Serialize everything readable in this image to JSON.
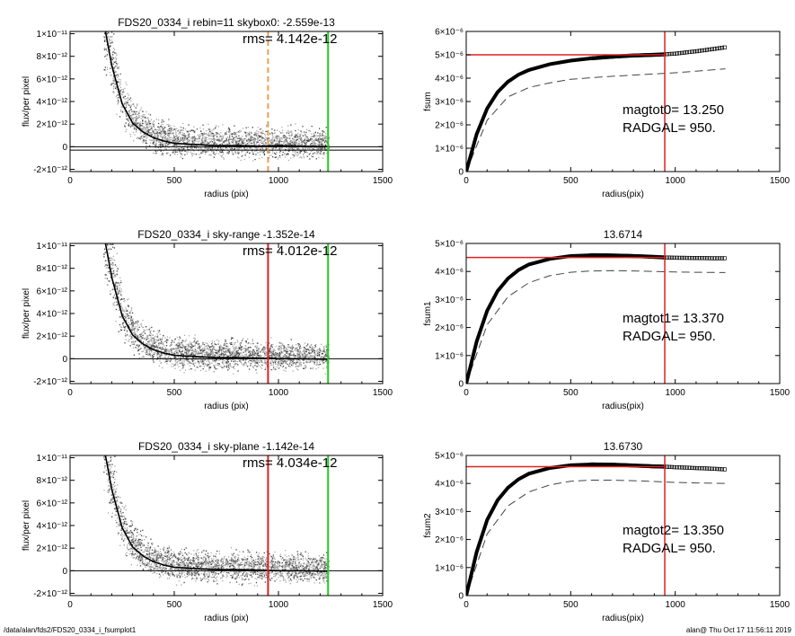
{
  "footer": {
    "path": "/data/alan/fds2/FDS20_0334_i_fsumplot1",
    "stamp": "alan@  Thu Oct 17 11:56:11 2019"
  },
  "chart_data": [
    {
      "type": "scatter",
      "title": "FDS20_0334_i rebin=11     skybox0: -2.559e-13",
      "annotation": "rms= 4.142e-12",
      "xlabel": "radius (pix)",
      "ylabel": "flux/per pixel",
      "xlim": [
        0,
        1500
      ],
      "ylim": [
        -2.2e-12,
        1.02e-11
      ],
      "xticks": [
        0,
        500,
        1000,
        1500
      ],
      "ytick_labels": [
        [
          "1×10⁻¹¹",
          1e-11
        ],
        [
          "8×10⁻¹²",
          8e-12
        ],
        [
          "6×10⁻¹²",
          6e-12
        ],
        [
          "4×10⁻¹²",
          4e-12
        ],
        [
          "2×10⁻¹²",
          2e-12
        ],
        [
          "0",
          0
        ],
        [
          "-2×10⁻¹²",
          -2e-12
        ]
      ],
      "profile_x": [
        170,
        200,
        250,
        300,
        350,
        400,
        450,
        500,
        600,
        700,
        800,
        900,
        1000,
        1100,
        1240
      ],
      "profile_y": [
        1.02e-11,
        7.2e-12,
        3.8e-12,
        2.1e-12,
        1.3e-12,
        8e-13,
        5e-13,
        3e-13,
        2e-13,
        1e-13,
        1e-13,
        5e-14,
        1e-13,
        5e-14,
        0
      ],
      "hlines": [
        {
          "y": 0,
          "color": "#000000"
        },
        {
          "y": -3e-13,
          "color": "#000000"
        }
      ],
      "vlines": [
        {
          "x": 950,
          "color": "#e8a050",
          "style": "dashed"
        },
        {
          "x": 1238,
          "color": "#22cc22",
          "style": "solid"
        }
      ]
    },
    {
      "type": "line",
      "title": "",
      "xlabel": "radius(pix)",
      "ylabel": "fsum",
      "xlim": [
        0,
        1500
      ],
      "ylim": [
        0,
        6e-06
      ],
      "xticks": [
        0,
        500,
        1000,
        1500
      ],
      "ytick_labels": [
        [
          "6×10⁻⁶",
          6e-06
        ],
        [
          "5×10⁻⁶",
          5e-06
        ],
        [
          "4×10⁻⁶",
          4e-06
        ],
        [
          "3×10⁻⁶",
          3e-06
        ],
        [
          "2×10⁻⁶",
          2e-06
        ],
        [
          "1×10⁻⁶",
          1e-06
        ],
        [
          "0",
          0
        ]
      ],
      "curve_x": [
        0,
        50,
        100,
        150,
        200,
        250,
        300,
        400,
        500,
        600,
        700,
        800,
        900,
        950,
        1000,
        1100,
        1200,
        1240
      ],
      "curve_y": [
        0,
        1.6e-06,
        2.7e-06,
        3.4e-06,
        3.85e-06,
        4.15e-06,
        4.35e-06,
        4.6e-06,
        4.75e-06,
        4.85e-06,
        4.92e-06,
        4.97e-06,
        5e-06,
        5.02e-06,
        5.05e-06,
        5.15e-06,
        5.27e-06,
        5.32e-06
      ],
      "dashed_x": [
        0,
        100,
        200,
        300,
        400,
        500,
        600,
        700,
        800,
        900,
        1000,
        1100,
        1240
      ],
      "dashed_y": [
        0,
        2.2e-06,
        3.2e-06,
        3.6e-06,
        3.8e-06,
        3.95e-06,
        4.02e-06,
        4.08e-06,
        4.13e-06,
        4.18e-06,
        4.23e-06,
        4.3e-06,
        4.4e-06
      ],
      "hline": 5e-06,
      "vline": 950,
      "annotations": [
        "magtot0=  13.250",
        "RADGAL=    950."
      ]
    },
    {
      "type": "scatter",
      "title": "FDS20_0334_i sky-range -1.352e-14",
      "annotation": "rms= 4.012e-12",
      "xlabel": "radius (pix)",
      "ylabel": "flux/per pixel",
      "xlim": [
        0,
        1500
      ],
      "ylim": [
        -2.2e-12,
        1.02e-11
      ],
      "xticks": [
        0,
        500,
        1000,
        1500
      ],
      "ytick_labels": [
        [
          "1×10⁻¹¹",
          1e-11
        ],
        [
          "8×10⁻¹²",
          8e-12
        ],
        [
          "6×10⁻¹²",
          6e-12
        ],
        [
          "4×10⁻¹²",
          4e-12
        ],
        [
          "2×10⁻¹²",
          2e-12
        ],
        [
          "0",
          0
        ],
        [
          "-2×10⁻¹²",
          -2e-12
        ]
      ],
      "profile_x": [
        170,
        200,
        250,
        300,
        350,
        400,
        450,
        500,
        600,
        700,
        800,
        900,
        1000,
        1100,
        1240
      ],
      "profile_y": [
        1.02e-11,
        7.2e-12,
        3.8e-12,
        2.1e-12,
        1.3e-12,
        8e-13,
        5e-13,
        3e-13,
        2e-13,
        1e-13,
        1e-13,
        5e-14,
        0,
        0,
        -5e-14
      ],
      "hlines": [
        {
          "y": 0,
          "color": "#000000"
        }
      ],
      "vlines": [
        {
          "x": 950,
          "color": "#dd2222",
          "style": "solid"
        },
        {
          "x": 1238,
          "color": "#22cc22",
          "style": "solid"
        }
      ]
    },
    {
      "type": "line",
      "title": "13.6714",
      "xlabel": "radius(pix)",
      "ylabel": "fsum1",
      "xlim": [
        0,
        1500
      ],
      "ylim": [
        0,
        5e-06
      ],
      "xticks": [
        0,
        500,
        1000,
        1500
      ],
      "ytick_labels": [
        [
          "5×10⁻⁶",
          5e-06
        ],
        [
          "4×10⁻⁶",
          4e-06
        ],
        [
          "3×10⁻⁶",
          3e-06
        ],
        [
          "2×10⁻⁶",
          2e-06
        ],
        [
          "1×10⁻⁶",
          1e-06
        ],
        [
          "0",
          0
        ]
      ],
      "curve_x": [
        0,
        50,
        100,
        150,
        200,
        250,
        300,
        400,
        500,
        600,
        700,
        800,
        900,
        950,
        1000,
        1100,
        1200,
        1240
      ],
      "curve_y": [
        0,
        1.5e-06,
        2.6e-06,
        3.3e-06,
        3.75e-06,
        4.05e-06,
        4.25e-06,
        4.45e-06,
        4.55e-06,
        4.58e-06,
        4.57e-06,
        4.55e-06,
        4.52e-06,
        4.5e-06,
        4.49e-06,
        4.48e-06,
        4.47e-06,
        4.47e-06
      ],
      "dashed_x": [
        0,
        100,
        200,
        300,
        400,
        500,
        600,
        700,
        800,
        900,
        1000,
        1100,
        1240
      ],
      "dashed_y": [
        0,
        2.1e-06,
        3.1e-06,
        3.6e-06,
        3.85e-06,
        3.97e-06,
        4.02e-06,
        4.03e-06,
        4.02e-06,
        4e-06,
        3.98e-06,
        3.97e-06,
        3.96e-06
      ],
      "hline": 4.5e-06,
      "vline": 950,
      "annotations": [
        "magtot1=  13.370",
        "RADGAL=    950."
      ]
    },
    {
      "type": "scatter",
      "title": "FDS20_0334_i sky-plane -1.142e-14",
      "annotation": "rms= 4.034e-12",
      "xlabel": "radius (pix)",
      "ylabel": "flux/per pixel",
      "xlim": [
        0,
        1500
      ],
      "ylim": [
        -2.2e-12,
        1.02e-11
      ],
      "xticks": [
        0,
        500,
        1000,
        1500
      ],
      "ytick_labels": [
        [
          "1×10⁻¹¹",
          1e-11
        ],
        [
          "8×10⁻¹²",
          8e-12
        ],
        [
          "6×10⁻¹²",
          6e-12
        ],
        [
          "4×10⁻¹²",
          4e-12
        ],
        [
          "2×10⁻¹²",
          2e-12
        ],
        [
          "0",
          0
        ],
        [
          "-2×10⁻¹²",
          -2e-12
        ]
      ],
      "profile_x": [
        170,
        200,
        250,
        300,
        350,
        400,
        450,
        500,
        600,
        700,
        800,
        900,
        1000,
        1100,
        1240
      ],
      "profile_y": [
        1.02e-11,
        7.2e-12,
        3.8e-12,
        2.1e-12,
        1.3e-12,
        8e-13,
        5e-13,
        3e-13,
        2e-13,
        1e-13,
        1e-13,
        5e-14,
        0,
        0,
        -5e-14
      ],
      "hlines": [
        {
          "y": 0,
          "color": "#000000"
        }
      ],
      "vlines": [
        {
          "x": 950,
          "color": "#dd2222",
          "style": "solid"
        },
        {
          "x": 1238,
          "color": "#22cc22",
          "style": "solid"
        }
      ]
    },
    {
      "type": "line",
      "title": "13.6730",
      "xlabel": "radius(pix)",
      "ylabel": "fsum2",
      "xlim": [
        0,
        1500
      ],
      "ylim": [
        0,
        5e-06
      ],
      "xticks": [
        0,
        500,
        1000,
        1500
      ],
      "ytick_labels": [
        [
          "5×10⁻⁶",
          5e-06
        ],
        [
          "4×10⁻⁶",
          4e-06
        ],
        [
          "3×10⁻⁶",
          3e-06
        ],
        [
          "2×10⁻⁶",
          2e-06
        ],
        [
          "1×10⁻⁶",
          1e-06
        ],
        [
          "0",
          0
        ]
      ],
      "curve_x": [
        0,
        50,
        100,
        150,
        200,
        250,
        300,
        400,
        500,
        600,
        700,
        800,
        900,
        950,
        1000,
        1100,
        1200,
        1240
      ],
      "curve_y": [
        0,
        1.55e-06,
        2.7e-06,
        3.4e-06,
        3.85e-06,
        4.15e-06,
        4.35e-06,
        4.55e-06,
        4.65e-06,
        4.68e-06,
        4.67e-06,
        4.64e-06,
        4.61e-06,
        4.6e-06,
        4.58e-06,
        4.55e-06,
        4.52e-06,
        4.5e-06
      ],
      "dashed_x": [
        0,
        100,
        200,
        300,
        400,
        500,
        600,
        700,
        800,
        900,
        1000,
        1100,
        1240
      ],
      "dashed_y": [
        0,
        2.2e-06,
        3.2e-06,
        3.7e-06,
        3.95e-06,
        4.08e-06,
        4.12e-06,
        4.12e-06,
        4.1e-06,
        4.07e-06,
        4.04e-06,
        4.02e-06,
        4e-06
      ],
      "hline": 4.6e-06,
      "vline": 950,
      "annotations": [
        "magtot2=  13.350",
        "RADGAL=    950."
      ]
    }
  ]
}
